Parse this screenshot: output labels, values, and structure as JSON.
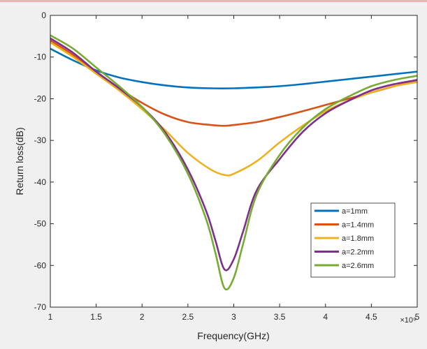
{
  "chart_data": {
    "type": "line",
    "title": "",
    "xlabel": "Frequency(GHz)",
    "ylabel": "Return loss(dB)",
    "x_exponent_label": "×10⁹",
    "xlim": [
      1,
      5
    ],
    "ylim": [
      -70,
      0
    ],
    "x_ticks": [
      "1",
      "1.5",
      "2",
      "2.5",
      "3",
      "3.5",
      "4",
      "4.5",
      "5"
    ],
    "y_ticks": [
      "0",
      "-10",
      "-20",
      "-30",
      "-40",
      "-50",
      "-60",
      "-70"
    ],
    "grid": false,
    "legend_position": "lower-right",
    "series": [
      {
        "name": "a=1mm",
        "color": "#0072BD",
        "x": [
          1,
          1.25,
          1.5,
          1.75,
          2,
          2.25,
          2.5,
          2.75,
          3,
          3.25,
          3.5,
          3.75,
          4,
          4.25,
          4.5,
          4.75,
          5
        ],
        "y": [
          -8,
          -10.8,
          -13.2,
          -14.9,
          -16,
          -16.8,
          -17.3,
          -17.5,
          -17.5,
          -17.3,
          -17,
          -16.5,
          -15.9,
          -15.3,
          -14.7,
          -14.1,
          -13.5
        ]
      },
      {
        "name": "a=1.4mm",
        "color": "#D95319",
        "x": [
          1,
          1.25,
          1.5,
          1.75,
          2,
          2.25,
          2.5,
          2.75,
          2.9,
          3,
          3.25,
          3.5,
          3.75,
          4,
          4.25,
          4.5,
          4.75,
          5
        ],
        "y": [
          -6,
          -9.5,
          -13.5,
          -17.5,
          -21,
          -23.8,
          -25.6,
          -26.3,
          -26.5,
          -26.3,
          -25.6,
          -24.4,
          -23,
          -21.5,
          -20,
          -18.5,
          -17,
          -15.5
        ]
      },
      {
        "name": "a=1.8mm",
        "color": "#EDB120",
        "x": [
          1,
          1.25,
          1.5,
          1.75,
          2,
          2.25,
          2.5,
          2.75,
          2.9,
          3,
          3.25,
          3.5,
          3.75,
          4,
          4.25,
          4.5,
          4.75,
          5
        ],
        "y": [
          -6.5,
          -10,
          -14,
          -18,
          -22.5,
          -27.5,
          -33,
          -37,
          -38.3,
          -38,
          -35,
          -30.5,
          -26.5,
          -23,
          -20.5,
          -18.5,
          -17,
          -16
        ]
      },
      {
        "name": "a=2.2mm",
        "color": "#7E2F8E",
        "x": [
          1,
          1.25,
          1.5,
          1.75,
          2,
          2.25,
          2.5,
          2.7,
          2.8,
          2.9,
          3,
          3.1,
          3.25,
          3.5,
          3.75,
          4,
          4.25,
          4.5,
          4.75,
          5
        ],
        "y": [
          -5.5,
          -9,
          -13.5,
          -17.5,
          -22,
          -28,
          -37,
          -47,
          -54,
          -61,
          -58.5,
          -52,
          -42,
          -34.5,
          -28,
          -23.5,
          -20.5,
          -18,
          -16.5,
          -15.5
        ]
      },
      {
        "name": "a=2.6mm",
        "color": "#77AC30",
        "x": [
          1,
          1.25,
          1.5,
          1.75,
          2,
          2.25,
          2.5,
          2.7,
          2.8,
          2.9,
          3,
          3.1,
          3.25,
          3.5,
          3.75,
          4,
          4.25,
          4.5,
          4.75,
          5
        ],
        "y": [
          -4.8,
          -8,
          -12.5,
          -17,
          -22,
          -28.5,
          -38,
          -49,
          -57,
          -65.5,
          -63,
          -55,
          -43,
          -33.5,
          -27,
          -22.5,
          -19.5,
          -17,
          -15.5,
          -14.5
        ]
      }
    ]
  }
}
